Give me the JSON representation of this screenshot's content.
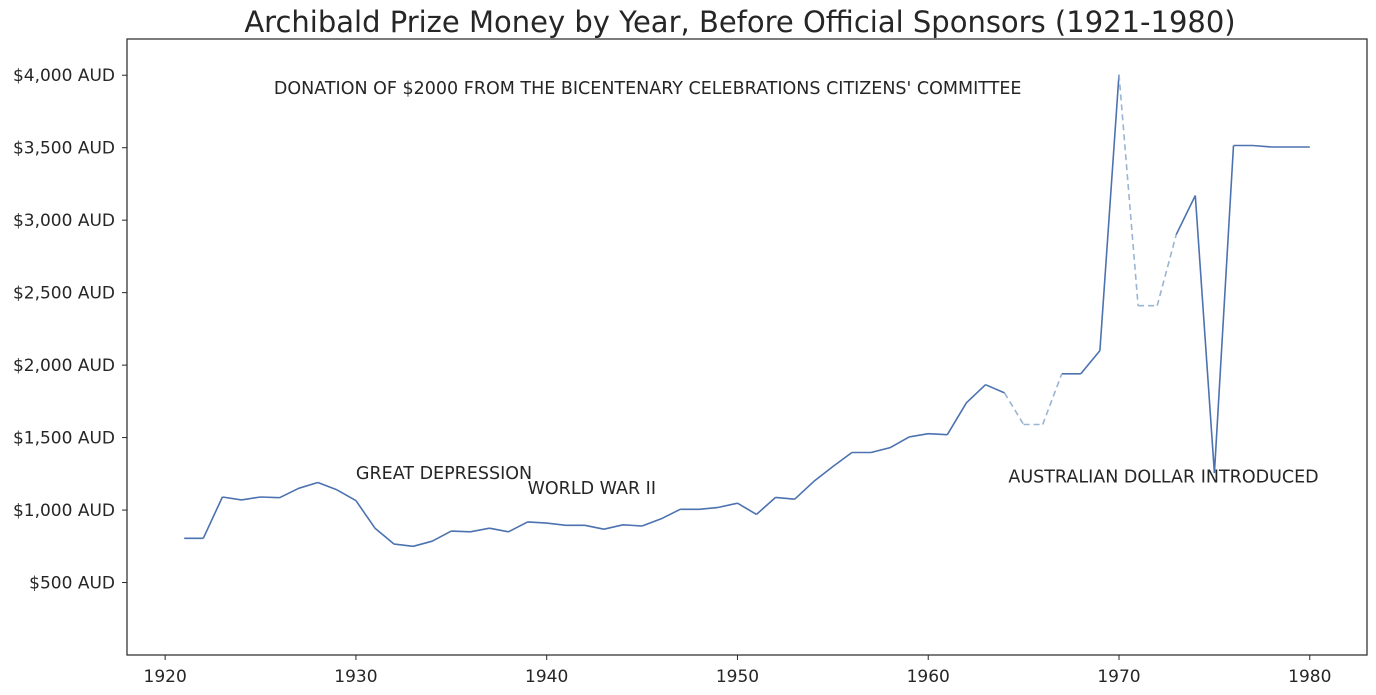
{
  "chart_data": {
    "type": "line",
    "title": "Archibald Prize Money by Year, Before Official Sponsors (1921-1980)",
    "xlabel": "",
    "ylabel": "",
    "xlim": [
      1918,
      1983
    ],
    "ylim": [
      0,
      4250
    ],
    "x_ticks": [
      1920,
      1930,
      1940,
      1950,
      1960,
      1970,
      1980
    ],
    "y_ticks": [
      500,
      1000,
      1500,
      2000,
      2500,
      3000,
      3500,
      4000
    ],
    "y_tick_labels": [
      "$500 AUD",
      "$1,000 AUD",
      "$1,500 AUD",
      "$2,000 AUD",
      "$2,500 AUD",
      "$3,000 AUD",
      "$3,500 AUD",
      "$4,000 AUD"
    ],
    "x_tick_labels": [
      "1920",
      "1930",
      "1940",
      "1950",
      "1960",
      "1970",
      "1980"
    ],
    "grid": false,
    "colors": {
      "line": "#4c72b0",
      "dashed": "#9ab4d3",
      "text": "#262626",
      "frame": "#262626"
    },
    "series": [
      {
        "x": [
          1921,
          1922,
          1923,
          1924,
          1925,
          1926,
          1927,
          1928,
          1929,
          1930,
          1931,
          1932,
          1933,
          1934,
          1935,
          1936,
          1937,
          1938,
          1939,
          1940,
          1941,
          1942,
          1943,
          1944,
          1945,
          1946,
          1947,
          1948,
          1949,
          1950,
          1951,
          1952,
          1953,
          1954,
          1955,
          1956,
          1957,
          1958,
          1959,
          1960,
          1961,
          1962,
          1963,
          1964,
          1965,
          1966,
          1967,
          1968,
          1969,
          1970,
          1971,
          1972,
          1973,
          1974,
          1975,
          1976,
          1977,
          1978,
          1979,
          1980
        ],
        "values": [
          805,
          805,
          1090,
          1070,
          1090,
          1085,
          1150,
          1190,
          1140,
          1065,
          875,
          765,
          750,
          785,
          855,
          850,
          875,
          850,
          918,
          910,
          895,
          895,
          868,
          898,
          890,
          940,
          1005,
          1005,
          1018,
          1047,
          970,
          1087,
          1075,
          1198,
          1300,
          1397,
          1397,
          1430,
          1505,
          1527,
          1520,
          1740,
          1865,
          1808,
          1590,
          1590,
          1940,
          1940,
          2100,
          4005,
          2410,
          2410,
          2900,
          3170,
          1255,
          3515,
          3515,
          3505,
          3505,
          3505
        ],
        "gaps_dashed": [
          [
            1964,
            1967
          ],
          [
            1970,
            1973
          ]
        ]
      }
    ],
    "annotations": [
      {
        "text": "DONATION OF $2000 FROM THE  BICENTENARY CELEBRATIONS  CITIZENS' COMMITTEE",
        "x": 1925.7,
        "y": 3870
      },
      {
        "text": "GREAT  DEPRESSION",
        "x": 1930.0,
        "y": 1215
      },
      {
        "text": "WORLD  WAR II",
        "x": 1939.0,
        "y": 1110
      },
      {
        "text": "AUSTRALIAN  DOLLAR  INTRODUCED",
        "x": 1964.2,
        "y": 1190
      }
    ]
  }
}
